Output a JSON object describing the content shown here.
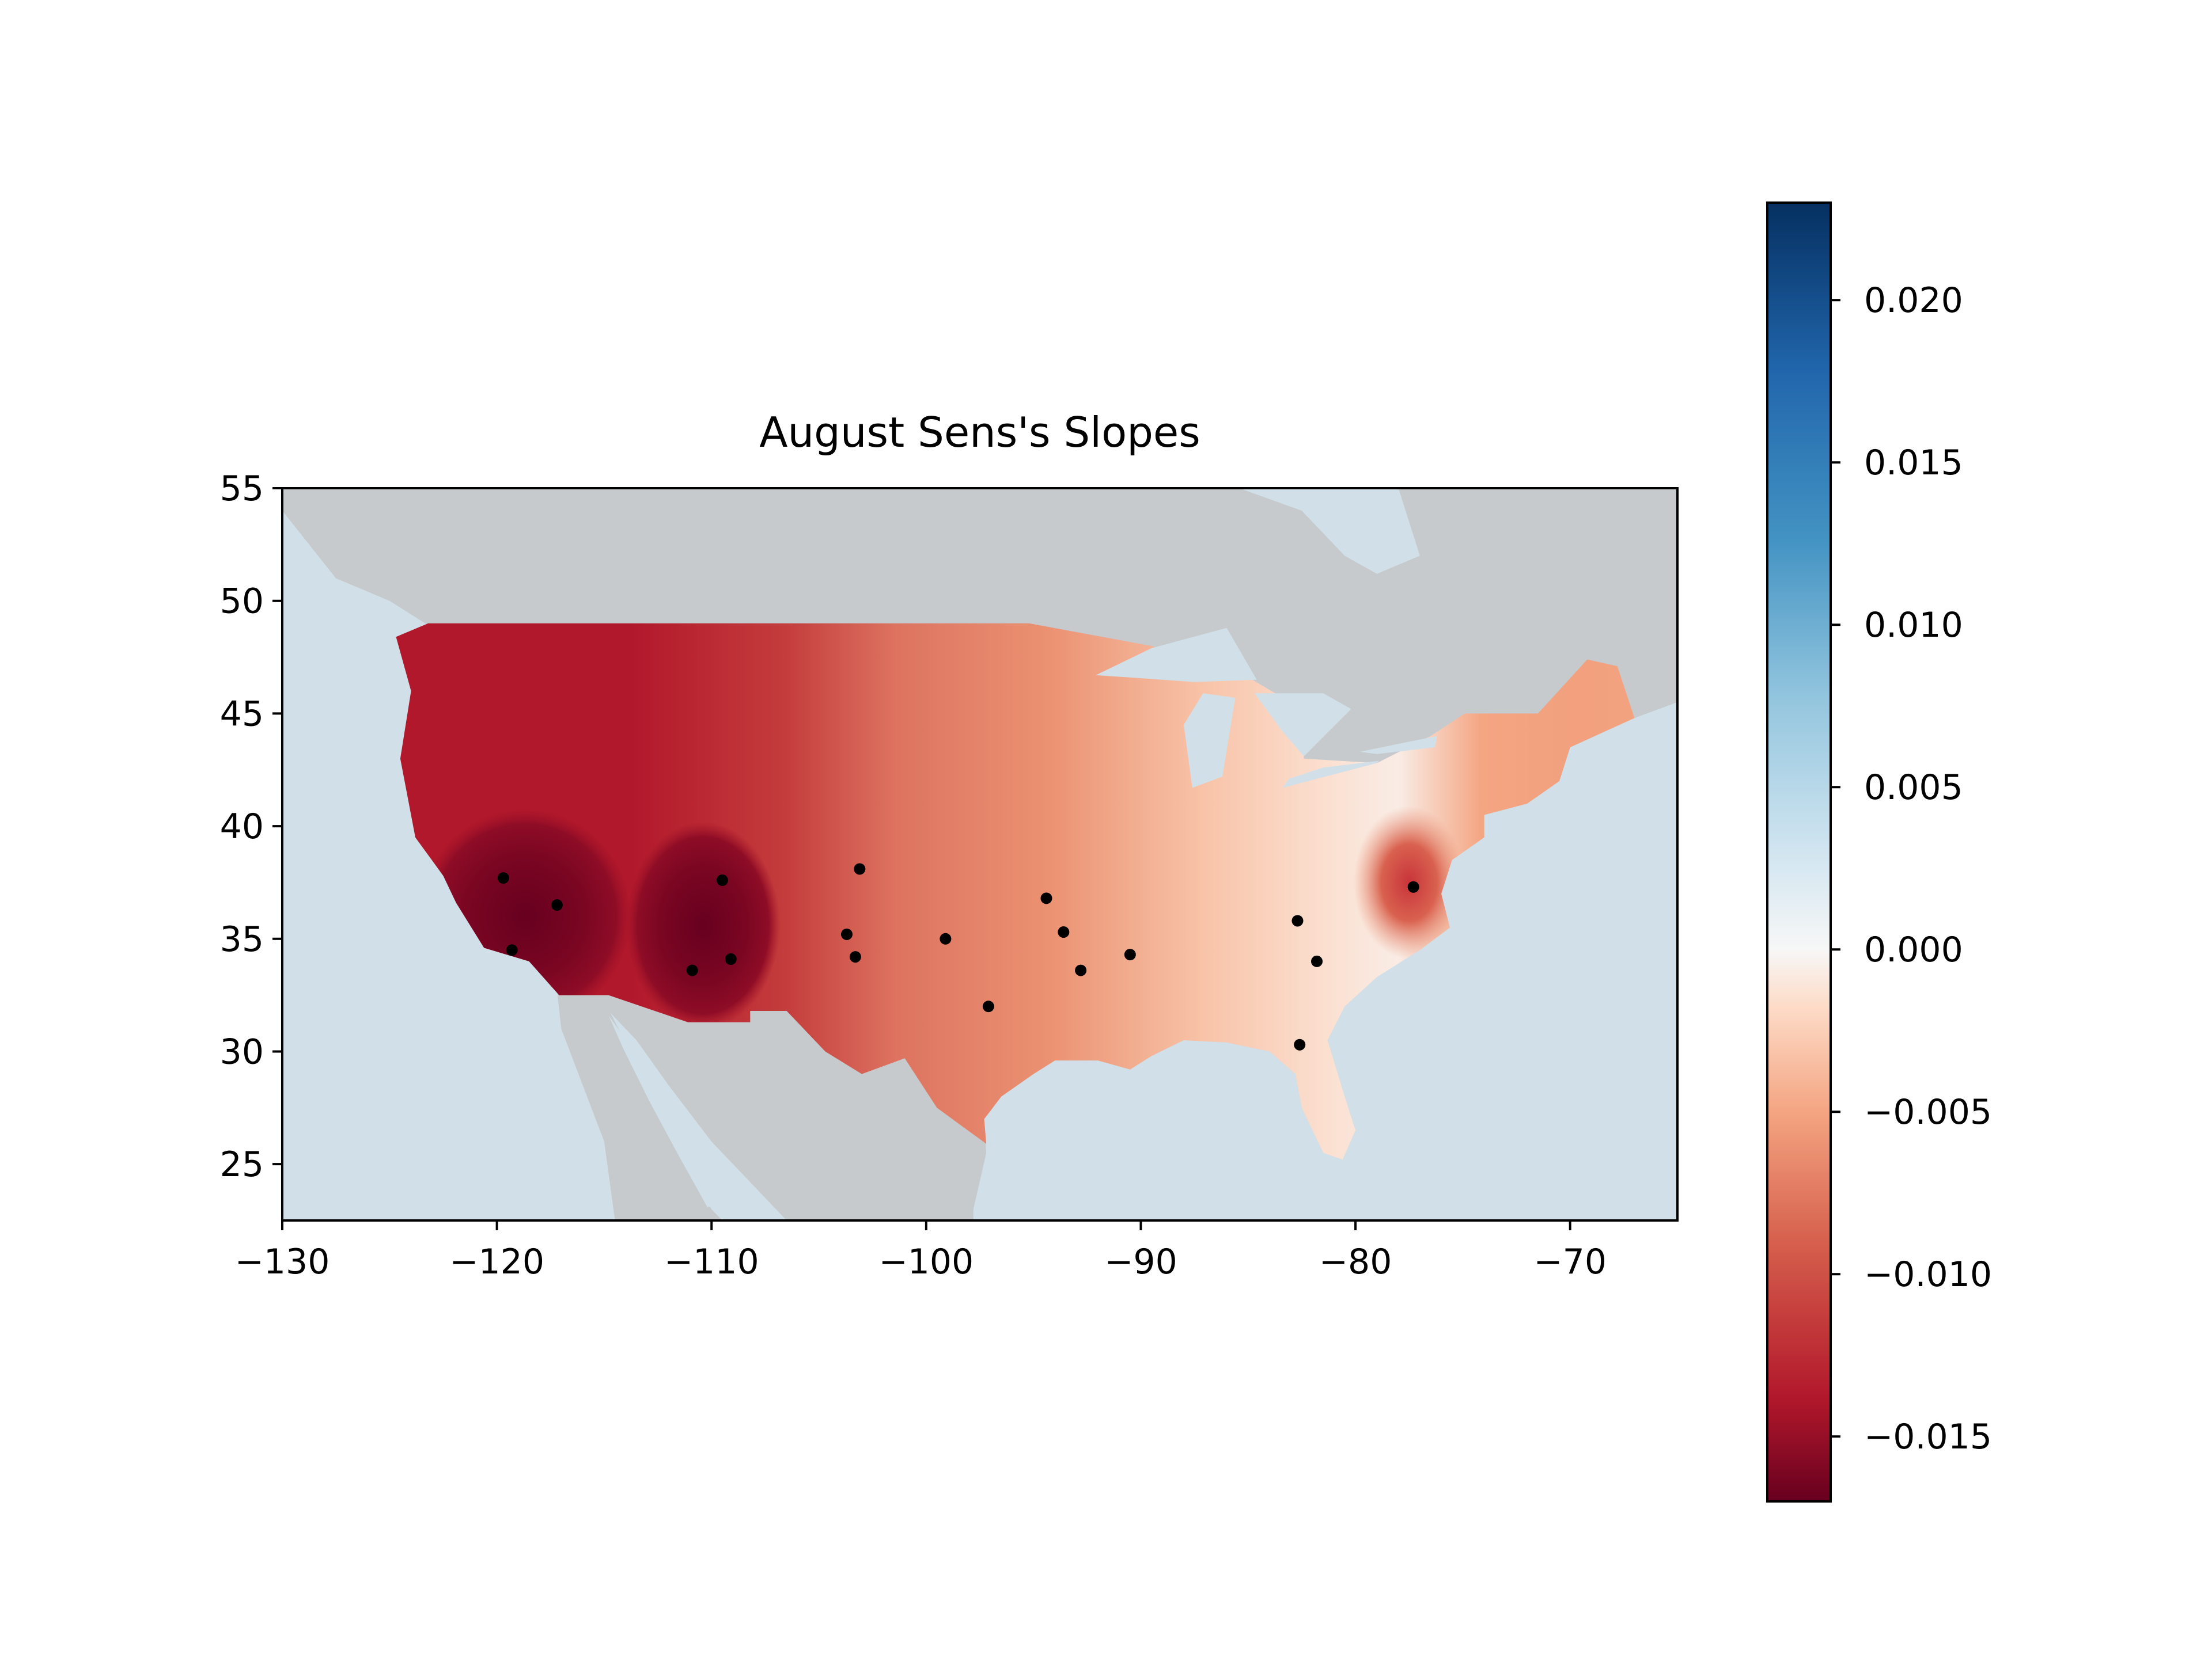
{
  "chart_data": {
    "type": "heatmap",
    "subtype": "filled contour map with station markers",
    "title": "August Sens's Slopes",
    "xlabel": "",
    "ylabel": "",
    "xlim": [
      -130,
      -65
    ],
    "ylim": [
      22.5,
      55
    ],
    "x_ticks": [
      -130,
      -120,
      -110,
      -100,
      -90,
      -80,
      -70
    ],
    "y_ticks": [
      25,
      30,
      35,
      40,
      45,
      50,
      55
    ],
    "x_tick_labels": [
      "−130",
      "−120",
      "−110",
      "−100",
      "−90",
      "−80",
      "−70"
    ],
    "y_tick_labels": [
      "25",
      "30",
      "35",
      "40",
      "45",
      "50",
      "55"
    ],
    "colormap": "RdBu",
    "colorbar": {
      "range": [
        -0.017,
        0.023
      ],
      "ticks": [
        -0.015,
        -0.01,
        -0.005,
        0.0,
        0.005,
        0.01,
        0.015,
        0.02
      ],
      "tick_labels": [
        "−0.015",
        "−0.010",
        "−0.005",
        "0.000",
        "0.005",
        "0.010",
        "0.015",
        "0.020"
      ]
    },
    "stations": [
      {
        "lon": -119.7,
        "lat": 37.7
      },
      {
        "lon": -117.2,
        "lat": 36.5
      },
      {
        "lon": -119.3,
        "lat": 34.5
      },
      {
        "lon": -109.5,
        "lat": 37.6
      },
      {
        "lon": -109.1,
        "lat": 34.1
      },
      {
        "lon": -110.9,
        "lat": 33.6
      },
      {
        "lon": -103.1,
        "lat": 38.1
      },
      {
        "lon": -103.7,
        "lat": 35.2
      },
      {
        "lon": -103.3,
        "lat": 34.2
      },
      {
        "lon": -99.1,
        "lat": 35.0
      },
      {
        "lon": -97.1,
        "lat": 32.0
      },
      {
        "lon": -94.4,
        "lat": 36.8
      },
      {
        "lon": -93.6,
        "lat": 35.3
      },
      {
        "lon": -92.8,
        "lat": 33.6
      },
      {
        "lon": -90.5,
        "lat": 34.3
      },
      {
        "lon": -82.7,
        "lat": 35.8
      },
      {
        "lon": -81.8,
        "lat": 34.0
      },
      {
        "lon": -82.6,
        "lat": 30.3
      },
      {
        "lon": -77.3,
        "lat": 37.3
      }
    ],
    "colors": {
      "ocean": "#d1e0e8",
      "land": "#c6cacd",
      "station": "#000000"
    }
  }
}
